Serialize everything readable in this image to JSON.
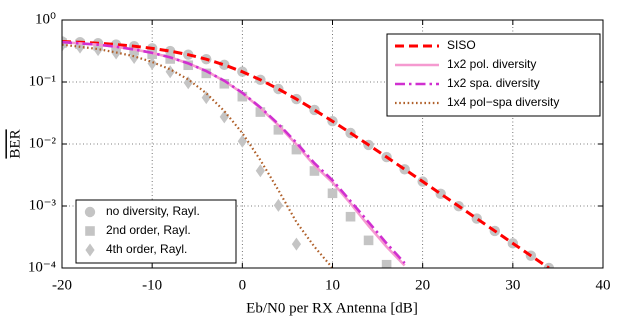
{
  "chart_data": {
    "type": "line",
    "ylog": true,
    "grid": true,
    "xlabel": "Eb/N0  per  RX  Antenna  [dB]",
    "ylabel": "BER",
    "xlim": [
      -20,
      40
    ],
    "xticks": [
      -20,
      -10,
      0,
      10,
      20,
      30,
      40
    ],
    "ylim": [
      0.0001,
      1
    ],
    "yticks": [
      {
        "value": 0.0001,
        "label": "10⁻⁴"
      },
      {
        "value": 0.001,
        "label": "10⁻³"
      },
      {
        "value": 0.01,
        "label": "10⁻²"
      },
      {
        "value": 0.1,
        "label": "10⁻¹"
      },
      {
        "value": 1,
        "label": "10⁰"
      }
    ],
    "x": [
      -20,
      -18,
      -16,
      -14,
      -12,
      -10,
      -8,
      -6,
      -4,
      -2,
      0,
      2,
      4,
      6,
      8,
      10,
      12,
      14,
      16,
      18,
      20,
      22,
      24,
      26,
      28,
      30,
      32,
      34
    ],
    "series": [
      {
        "name": "no diversity, Rayl.",
        "draw": "marker",
        "marker": "circle",
        "color": "#c4c4c4",
        "legend": "lower left",
        "values": [
          0.4502,
          0.4375,
          0.4218,
          0.4022,
          0.3782,
          0.3492,
          0.3151,
          0.276,
          0.2332,
          0.189,
          0.1464,
          0.1085,
          0.0771,
          0.053,
          0.0354,
          0.0233,
          0.01504,
          0.00967,
          0.00616,
          0.00391,
          0.00248,
          0.00157,
          0.000994,
          0.000627,
          0.000396,
          0.00025,
          0.000158,
          0.0001
        ]
      },
      {
        "name": "2nd order, Rayl.",
        "draw": "marker",
        "marker": "square",
        "color": "#c4c4c4",
        "legend": "lower left",
        "values": [
          0.4256,
          0.4067,
          0.3837,
          0.3552,
          0.3209,
          0.2806,
          0.2353,
          0.1865,
          0.1378,
          0.09366,
          0.05802,
          0.03276,
          0.01692,
          0.00813,
          0.00367,
          0.001603,
          0.000672,
          0.000279,
          0.000113,
          null,
          null,
          null,
          null,
          null,
          null,
          null,
          null,
          null
        ]
      },
      {
        "name": "4th order, Rayl.",
        "draw": "marker",
        "marker": "diamond",
        "color": "#c4c4c4",
        "legend": "lower left",
        "values": [
          0.392,
          0.3654,
          0.3331,
          0.294,
          0.2488,
          0.1985,
          0.1465,
          0.09707,
          0.05608,
          0.02742,
          0.01109,
          0.003698,
          0.001022,
          0.0002426,
          null,
          null,
          null,
          null,
          null,
          null,
          null,
          null,
          null,
          null,
          null,
          null,
          null,
          null
        ]
      },
      {
        "name": "SISO",
        "draw": "line",
        "dash": "dashed",
        "color": "#ff0000",
        "legend": "upper right",
        "values": [
          0.4502,
          0.4375,
          0.4218,
          0.4022,
          0.3782,
          0.3492,
          0.3151,
          0.276,
          0.2332,
          0.189,
          0.1464,
          0.1085,
          0.0771,
          0.053,
          0.0354,
          0.0233,
          0.01504,
          0.00967,
          0.00616,
          0.00391,
          0.00248,
          0.00157,
          0.000994,
          0.000627,
          0.000396,
          0.00025,
          0.000158,
          0.0001
        ]
      },
      {
        "name": "1x2 pol. diversity",
        "draw": "line",
        "dash": "solid",
        "color": "#f59ad0",
        "legend": "upper right",
        "values": [
          0.44,
          0.42,
          0.4,
          0.37,
          0.335,
          0.295,
          0.25,
          0.2,
          0.15,
          0.104,
          0.066,
          0.038,
          0.02,
          0.0098,
          0.0045,
          0.0024,
          0.0011,
          0.00048,
          0.00022,
          0.00011,
          null,
          null,
          null,
          null,
          null,
          null,
          null,
          null
        ]
      },
      {
        "name": "1x2 spa. diversity",
        "draw": "line",
        "dash": "dashdot",
        "color": "#d030d0",
        "legend": "upper right",
        "values": [
          0.44,
          0.42,
          0.4,
          0.37,
          0.335,
          0.295,
          0.25,
          0.2,
          0.15,
          0.105,
          0.067,
          0.039,
          0.021,
          0.0105,
          0.0049,
          0.0026,
          0.0012,
          0.00055,
          0.00025,
          0.00012,
          null,
          null,
          null,
          null,
          null,
          null,
          null,
          null
        ]
      },
      {
        "name": "1x4 pol−spa diversity",
        "draw": "line",
        "dash": "dotted",
        "color": "#b0602a",
        "legend": "upper right",
        "values": [
          0.4,
          0.37,
          0.34,
          0.3,
          0.26,
          0.21,
          0.16,
          0.11,
          0.066,
          0.034,
          0.015,
          0.0055,
          0.0018,
          0.00055,
          0.00022,
          0.0001,
          null,
          null,
          null,
          null,
          null,
          null,
          null,
          null,
          null,
          null,
          null,
          null
        ]
      }
    ]
  }
}
